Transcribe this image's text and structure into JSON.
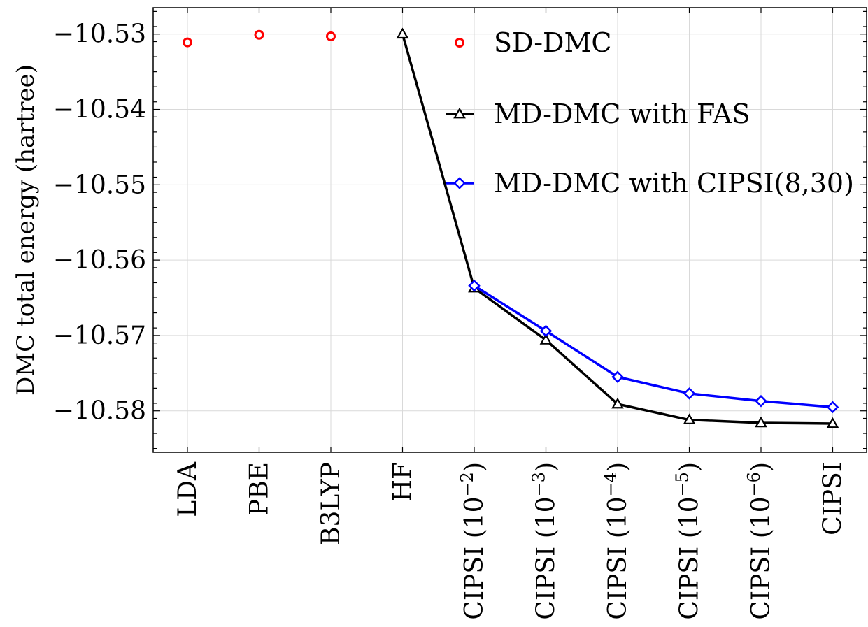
{
  "chart_data": {
    "type": "line",
    "ylabel": "DMC total energy (hartree)",
    "xlabel": "",
    "categories": [
      "LDA",
      "PBE",
      "B3LYP",
      "HF",
      "CIPSI (10^-2)",
      "CIPSI (10^-3)",
      "CIPSI (10^-4)",
      "CIPSI (10^-5)",
      "CIPSI (10^-6)",
      "CIPSI"
    ],
    "category_labels": [
      {
        "base": "LDA",
        "exp": ""
      },
      {
        "base": "PBE",
        "exp": ""
      },
      {
        "base": "B3LYP",
        "exp": ""
      },
      {
        "base": "HF",
        "exp": ""
      },
      {
        "base": "CIPSI (10",
        "exp": "−2",
        "close": ")"
      },
      {
        "base": "CIPSI (10",
        "exp": "−3",
        "close": ")"
      },
      {
        "base": "CIPSI (10",
        "exp": "−4",
        "close": ")"
      },
      {
        "base": "CIPSI (10",
        "exp": "−5",
        "close": ")"
      },
      {
        "base": "CIPSI (10",
        "exp": "−6",
        "close": ")"
      },
      {
        "base": "CIPSI",
        "exp": ""
      }
    ],
    "ylim": [
      -10.5855,
      -10.5265
    ],
    "yticks": [
      -10.53,
      -10.54,
      -10.55,
      -10.56,
      -10.57,
      -10.58
    ],
    "ytick_labels": [
      "−10.53",
      "−10.54",
      "−10.55",
      "−10.56",
      "−10.57",
      "−10.58"
    ],
    "grid": true,
    "legend_position": "top-right",
    "series": [
      {
        "name": "SD-DMC",
        "marker": "circle",
        "line": false,
        "color": "#ff0000",
        "points": [
          [
            0,
            -10.5311
          ],
          [
            1,
            -10.5301
          ],
          [
            2,
            -10.5303
          ]
        ]
      },
      {
        "name": "MD-DMC with FAS",
        "marker": "triangle",
        "line": true,
        "color": "#000000",
        "points": [
          [
            3,
            -10.53
          ],
          [
            4,
            -10.5637
          ],
          [
            5,
            -10.5706
          ],
          [
            6,
            -10.5791
          ],
          [
            7,
            -10.5812
          ],
          [
            8,
            -10.5816
          ],
          [
            9,
            -10.5817
          ]
        ]
      },
      {
        "name": "MD-DMC with CIPSI(8,30)",
        "marker": "diamond",
        "line": true,
        "color": "#0000ff",
        "points": [
          [
            4,
            -10.5634
          ],
          [
            5,
            -10.5694
          ],
          [
            6,
            -10.5755
          ],
          [
            7,
            -10.5777
          ],
          [
            8,
            -10.5787
          ],
          [
            9,
            -10.5795
          ]
        ]
      }
    ]
  }
}
